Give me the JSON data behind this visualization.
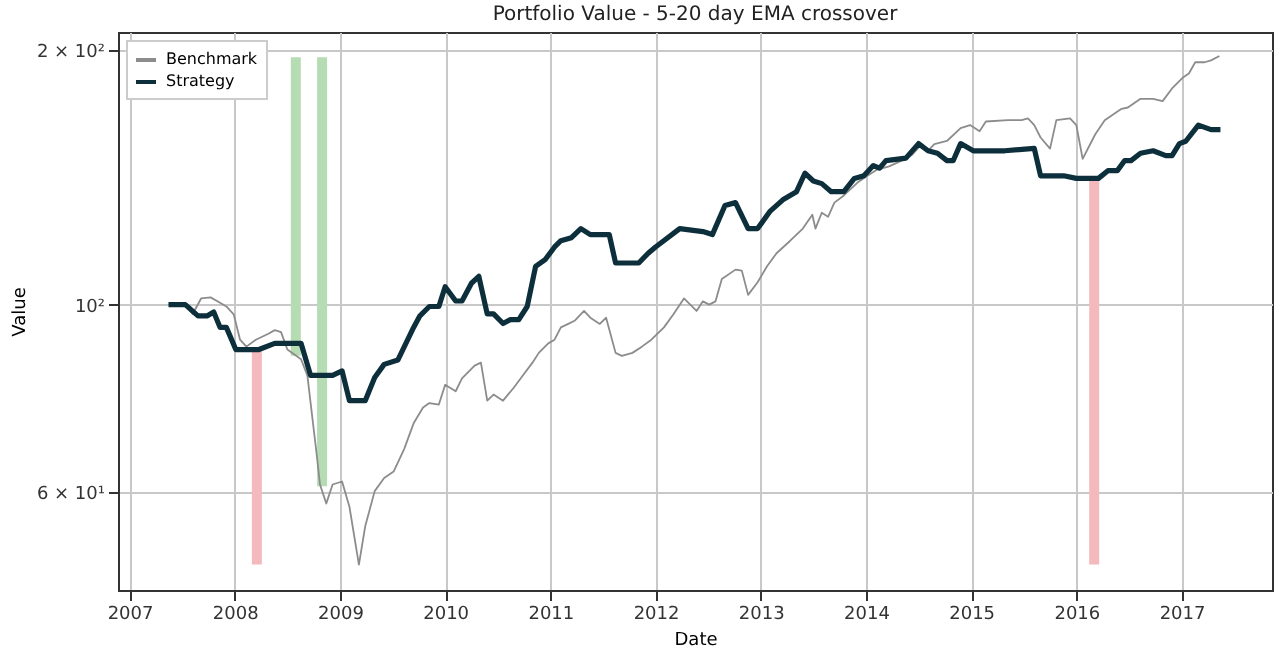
{
  "chart_data": {
    "type": "line",
    "title": "Portfolio Value - 5-20 day EMA crossover",
    "xlabel": "Date",
    "ylabel": "Value",
    "xlim": [
      2006.89,
      2017.86
    ],
    "xticks": [
      2007,
      2008,
      2009,
      2010,
      2011,
      2012,
      2013,
      2014,
      2015,
      2016,
      2017
    ],
    "ylim": [
      46,
      210
    ],
    "yticks": [
      {
        "value": 60,
        "label": "6 × 10¹"
      },
      {
        "value": 100,
        "label": "10²"
      },
      {
        "value": 200,
        "label": "2 × 10²"
      }
    ],
    "log": "y",
    "grid": true,
    "legend": "top left",
    "series": [
      {
        "type": "line",
        "color": "#b5dcb3",
        "x": [
          2008.58,
          2008.58
        ],
        "values": [
          196,
          87
        ]
      },
      {
        "type": "line",
        "color": "#b5dcb3",
        "x": [
          2008.83,
          2008.83
        ],
        "values": [
          196,
          61
        ]
      },
      {
        "type": "line",
        "color": "#f4b9bd",
        "x": [
          2008.21,
          2008.21
        ],
        "values": [
          88.5,
          49.3
        ]
      },
      {
        "type": "line",
        "color": "#f4b9bd",
        "x": [
          2016.17,
          2016.17
        ],
        "values": [
          141,
          49.3
        ]
      },
      {
        "name": "Benchmark",
        "color": "#8c8c8c",
        "x": [
          2007.37,
          2007.53,
          2007.6,
          2007.68,
          2007.77,
          2007.86,
          2007.92,
          2007.99,
          2008.05,
          2008.11,
          2008.2,
          2008.32,
          2008.38,
          2008.44,
          2008.5,
          2008.63,
          2008.69,
          2008.78,
          2008.81,
          2008.87,
          2008.93,
          2009.02,
          2009.09,
          2009.18,
          2009.24,
          2009.33,
          2009.42,
          2009.51,
          2009.61,
          2009.7,
          2009.79,
          2009.85,
          2009.94,
          2010.0,
          2010.1,
          2010.16,
          2010.28,
          2010.34,
          2010.4,
          2010.46,
          2010.55,
          2010.65,
          2010.74,
          2010.83,
          2010.89,
          2010.98,
          2011.04,
          2011.1,
          2011.17,
          2011.23,
          2011.32,
          2011.38,
          2011.47,
          2011.53,
          2011.62,
          2011.68,
          2011.78,
          2011.87,
          2011.96,
          2012.08,
          2012.17,
          2012.27,
          2012.39,
          2012.45,
          2012.51,
          2012.57,
          2012.63,
          2012.76,
          2012.82,
          2012.88,
          2012.97,
          2013.06,
          2013.15,
          2013.28,
          2013.4,
          2013.49,
          2013.52,
          2013.58,
          2013.64,
          2013.7,
          2013.79,
          2013.92,
          2014.01,
          2014.1,
          2014.22,
          2014.35,
          2014.44,
          2014.53,
          2014.59,
          2014.65,
          2014.77,
          2014.9,
          2014.99,
          2015.08,
          2015.14,
          2015.35,
          2015.48,
          2015.54,
          2015.6,
          2015.66,
          2015.75,
          2015.81,
          2015.94,
          2016.0,
          2016.06,
          2016.18,
          2016.27,
          2016.36,
          2016.43,
          2016.49,
          2016.61,
          2016.73,
          2016.82,
          2016.91,
          2017.01,
          2017.07,
          2017.13,
          2017.22,
          2017.28,
          2017.36
        ],
        "values": [
          100,
          100,
          97.5,
          101.7,
          102,
          100.5,
          99.5,
          97.4,
          90.9,
          89.2,
          90.9,
          92.4,
          93.3,
          92.8,
          88.5,
          86.2,
          82.5,
          66.3,
          61.3,
          58.2,
          61.3,
          61.8,
          57.7,
          49.3,
          54.7,
          60.2,
          62.4,
          63.5,
          67.5,
          72.4,
          75.6,
          76.5,
          76.2,
          80.4,
          79,
          81.8,
          84.7,
          85.4,
          77,
          78.3,
          77,
          79.7,
          82.5,
          85.4,
          87.7,
          90,
          90.9,
          94,
          94.9,
          95.7,
          98.3,
          96.5,
          94.9,
          96.5,
          87.7,
          87,
          87.7,
          89.2,
          90.9,
          94,
          97.4,
          101.7,
          98.3,
          100.9,
          100,
          100.9,
          107.2,
          110,
          109.7,
          102.7,
          106.3,
          111,
          115,
          119,
          123,
          127.7,
          123,
          128.4,
          127,
          132,
          134.6,
          139.4,
          141.9,
          144.3,
          145.7,
          148.2,
          150.4,
          154.8,
          152,
          154.8,
          156.1,
          161.7,
          163,
          160.3,
          164.6,
          165.2,
          165.2,
          166,
          163,
          157.6,
          152.9,
          165.2,
          166,
          163,
          148.7,
          159,
          165.2,
          168.1,
          170.4,
          171,
          175.1,
          175.1,
          174,
          180.1,
          185.4,
          187.6,
          193.4,
          193.4,
          194.4,
          196.7
        ]
      },
      {
        "name": "Strategy",
        "color": "#0d2f3c",
        "x": [
          2007.37,
          2007.53,
          2007.65,
          2007.74,
          2007.8,
          2007.86,
          2007.92,
          2008.01,
          2008.23,
          2008.38,
          2008.63,
          2008.72,
          2008.93,
          2009.02,
          2009.09,
          2009.24,
          2009.33,
          2009.42,
          2009.55,
          2009.7,
          2009.76,
          2009.85,
          2009.94,
          2010.0,
          2010.1,
          2010.16,
          2010.25,
          2010.32,
          2010.4,
          2010.46,
          2010.55,
          2010.62,
          2010.7,
          2010.78,
          2010.86,
          2010.95,
          2011.04,
          2011.1,
          2011.2,
          2011.29,
          2011.38,
          2011.56,
          2011.62,
          2011.84,
          2011.93,
          2012.0,
          2012.23,
          2012.45,
          2012.54,
          2012.66,
          2012.76,
          2012.88,
          2012.97,
          2013.09,
          2013.21,
          2013.34,
          2013.42,
          2013.5,
          2013.58,
          2013.67,
          2013.79,
          2013.89,
          2013.98,
          2014.07,
          2014.13,
          2014.19,
          2014.38,
          2014.5,
          2014.59,
          2014.68,
          2014.77,
          2014.83,
          2014.9,
          2015.02,
          2015.32,
          2015.6,
          2015.66,
          2015.88,
          2016.0,
          2016.21,
          2016.3,
          2016.39,
          2016.46,
          2016.52,
          2016.61,
          2016.73,
          2016.85,
          2016.91,
          2016.98,
          2017.04,
          2017.16,
          2017.22,
          2017.28,
          2017.37
        ],
        "values": [
          100,
          100,
          97,
          97,
          98,
          94,
          94,
          88.5,
          88.5,
          90,
          90,
          82.5,
          82.5,
          83.5,
          77,
          77,
          82,
          85,
          86,
          94,
          97,
          99.5,
          99.5,
          105,
          101,
          101,
          106,
          108,
          97.5,
          97.5,
          95,
          96,
          96,
          99.5,
          111,
          113,
          117,
          119,
          120,
          123,
          121,
          121,
          112,
          112,
          115,
          117,
          123,
          122,
          121,
          131,
          132,
          123,
          123,
          129,
          133,
          136,
          143,
          140,
          139,
          136,
          136,
          141,
          142,
          146,
          145,
          148,
          149,
          155,
          152,
          151,
          148,
          148,
          155,
          152,
          152,
          153,
          142,
          142,
          141,
          141,
          144,
          144,
          148,
          148,
          151,
          152,
          150,
          150,
          155,
          156,
          163,
          162,
          161,
          161
        ]
      }
    ]
  }
}
